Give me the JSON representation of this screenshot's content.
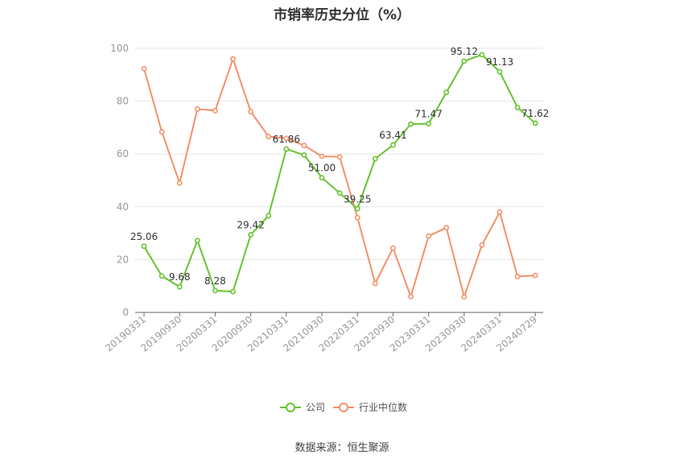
{
  "chart_data": {
    "type": "line",
    "title": "市销率历史分位（%）",
    "categories": [
      "20190331",
      "20190630",
      "20190930",
      "20191231",
      "20200331",
      "20200630",
      "20200930",
      "20201231",
      "20210331",
      "20210630",
      "20210930",
      "20211231",
      "20220331",
      "20220630",
      "20220930",
      "20221231",
      "20230331",
      "20230630",
      "20230930",
      "20231231",
      "20240331",
      "20240630",
      "20240729"
    ],
    "tick_labels": [
      "20190331",
      "20190930",
      "20200331",
      "20200930",
      "20210331",
      "20210930",
      "20220331",
      "20220930",
      "20230331",
      "20230930",
      "20240331",
      "20240729"
    ],
    "ylim": [
      0,
      100
    ],
    "yticks": [
      0,
      20,
      40,
      60,
      80,
      100
    ],
    "grid": true,
    "legend_position": "bottom",
    "colors": {
      "company": "#66c431",
      "industry": "#f3916a",
      "grid": "#e6e6e6",
      "axis": "#666666",
      "tick_text": "#999999"
    },
    "series": [
      {
        "name": "公司",
        "values": [
          25.06,
          13.8,
          9.68,
          27.2,
          8.28,
          7.9,
          29.42,
          36.6,
          61.86,
          59.6,
          51.0,
          45.2,
          39.25,
          58.2,
          63.41,
          71.3,
          71.47,
          83.3,
          95.12,
          97.6,
          91.13,
          77.6,
          71.62
        ],
        "labels": {
          "0": "25.06",
          "2": "9.68",
          "4": "8.28",
          "6": "29.42",
          "8": "61.86",
          "10": "51.00",
          "12": "39.25",
          "14": "63.41",
          "16": "71.47",
          "18": "95.12",
          "20": "91.13",
          "22": "71.62"
        }
      },
      {
        "name": "行业中位数",
        "values": [
          92.3,
          68.4,
          49.0,
          77.0,
          76.4,
          96.0,
          76.0,
          66.6,
          65.9,
          63.2,
          59.1,
          58.9,
          35.9,
          11.0,
          24.4,
          6.0,
          28.9,
          32.1,
          5.9,
          25.5,
          38.0,
          13.6,
          14.0
        ]
      }
    ]
  },
  "source": "数据来源：恒生聚源"
}
